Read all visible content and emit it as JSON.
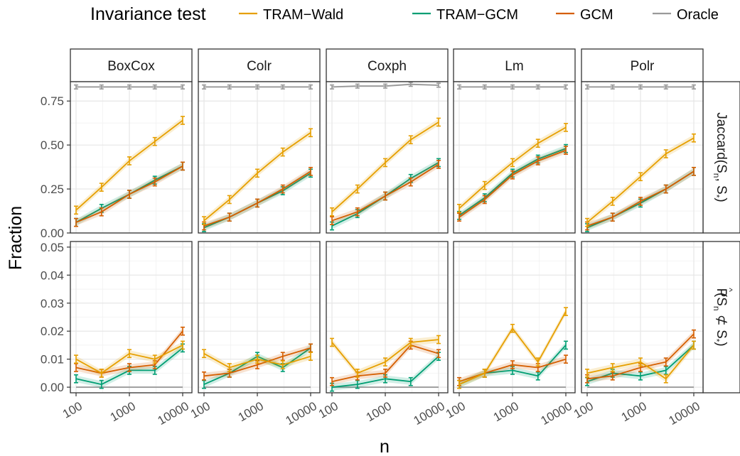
{
  "chart_data": {
    "type": "line",
    "legend": {
      "title": "Invariance test",
      "placement": "top",
      "entries": [
        "TRAM−Wald",
        "TRAM−GCM",
        "GCM",
        "Oracle"
      ]
    },
    "colors": {
      "TRAM−Wald": "#E69F00",
      "TRAM−GCM": "#009E73",
      "GCM": "#D55E00",
      "Oracle": "#999999"
    },
    "xlabel": "n",
    "ylabel": "Fraction",
    "x_scale": "log",
    "x": [
      100,
      300,
      1000,
      3000,
      10000
    ],
    "x_ticks": [
      100,
      1000,
      10000
    ],
    "x_tick_labels": [
      "100",
      "1000",
      "10000"
    ],
    "grid": true,
    "columns": [
      "BoxCox",
      "Colr",
      "Coxph",
      "Lm",
      "Polr"
    ],
    "rows": [
      {
        "label_main": "Jaccard(S",
        "label_sub1": "n",
        "label_mid": ", S",
        "label_sub2": "*",
        "label_end": ")",
        "ylim": [
          0,
          0.86
        ],
        "y_ticks": [
          0,
          0.25,
          0.5,
          0.75
        ],
        "y_tick_labels": [
          "0.00",
          "0.25",
          "0.50",
          "0.75"
        ]
      },
      {
        "label_main": "P",
        "label_hat": "^",
        "label_paren": "(S",
        "label_sub1": "n",
        "label_mid": " ⊄ S",
        "label_sub2": "*",
        "label_end": ")",
        "ylim": [
          -0.002,
          0.052
        ],
        "y_ticks": [
          0,
          0.01,
          0.02,
          0.03,
          0.04,
          0.05
        ],
        "y_tick_labels": [
          "0.00",
          "0.01",
          "0.02",
          "0.03",
          "0.04",
          "0.05"
        ]
      }
    ],
    "panels": [
      {
        "row": 0,
        "col": 0,
        "series": {
          "TRAM−Wald": [
            0.13,
            0.26,
            0.41,
            0.52,
            0.64
          ],
          "TRAM−GCM": [
            0.06,
            0.14,
            0.22,
            0.3,
            0.38
          ],
          "GCM": [
            0.06,
            0.12,
            0.22,
            0.29,
            0.38
          ],
          "Oracle": [
            0.83,
            0.83,
            0.83,
            0.83,
            0.83
          ]
        }
      },
      {
        "row": 0,
        "col": 1,
        "series": {
          "TRAM−Wald": [
            0.07,
            0.19,
            0.34,
            0.46,
            0.57
          ],
          "TRAM−GCM": [
            0.03,
            0.09,
            0.17,
            0.24,
            0.34
          ],
          "GCM": [
            0.04,
            0.09,
            0.17,
            0.25,
            0.35
          ],
          "Oracle": [
            0.83,
            0.83,
            0.83,
            0.83,
            0.83
          ]
        }
      },
      {
        "row": 0,
        "col": 2,
        "series": {
          "TRAM−Wald": [
            0.12,
            0.25,
            0.4,
            0.53,
            0.63
          ],
          "TRAM−GCM": [
            0.04,
            0.11,
            0.21,
            0.31,
            0.4
          ],
          "GCM": [
            0.07,
            0.12,
            0.21,
            0.29,
            0.39
          ],
          "Oracle": [
            0.83,
            0.835,
            0.835,
            0.845,
            0.84
          ]
        }
      },
      {
        "row": 0,
        "col": 3,
        "series": {
          "TRAM−Wald": [
            0.14,
            0.27,
            0.4,
            0.51,
            0.6
          ],
          "TRAM−GCM": [
            0.1,
            0.2,
            0.34,
            0.42,
            0.48
          ],
          "GCM": [
            0.09,
            0.19,
            0.33,
            0.41,
            0.47
          ],
          "Oracle": [
            0.83,
            0.83,
            0.83,
            0.83,
            0.83
          ]
        }
      },
      {
        "row": 0,
        "col": 4,
        "series": {
          "TRAM−Wald": [
            0.06,
            0.18,
            0.32,
            0.45,
            0.54
          ],
          "TRAM−GCM": [
            0.03,
            0.09,
            0.17,
            0.25,
            0.35
          ],
          "GCM": [
            0.04,
            0.09,
            0.18,
            0.25,
            0.35
          ],
          "Oracle": [
            0.83,
            0.83,
            0.83,
            0.83,
            0.83
          ]
        }
      },
      {
        "row": 1,
        "col": 0,
        "series": {
          "TRAM−Wald": [
            0.01,
            0.005,
            0.012,
            0.01,
            0.015
          ],
          "TRAM−GCM": [
            0.003,
            0.001,
            0.006,
            0.006,
            0.014
          ],
          "GCM": [
            0.007,
            0.005,
            0.007,
            0.008,
            0.02
          ],
          "Oracle": [
            0,
            0,
            0,
            0,
            0
          ]
        }
      },
      {
        "row": 1,
        "col": 1,
        "series": {
          "TRAM−Wald": [
            0.012,
            0.007,
            0.01,
            0.008,
            0.011
          ],
          "TRAM−GCM": [
            0.001,
            0.005,
            0.011,
            0.007,
            0.014
          ],
          "GCM": [
            0.004,
            0.005,
            0.008,
            0.011,
            0.014
          ],
          "Oracle": [
            0,
            0,
            0,
            0,
            0
          ]
        }
      },
      {
        "row": 1,
        "col": 2,
        "series": {
          "TRAM−Wald": [
            0.016,
            0.005,
            0.009,
            0.016,
            0.017
          ],
          "TRAM−GCM": [
            0.0,
            0.001,
            0.003,
            0.002,
            0.011
          ],
          "GCM": [
            0.002,
            0.004,
            0.005,
            0.015,
            0.012
          ],
          "Oracle": [
            0,
            0,
            0,
            0,
            0
          ]
        }
      },
      {
        "row": 1,
        "col": 3,
        "series": {
          "TRAM−Wald": [
            0.001,
            0.005,
            0.021,
            0.009,
            0.027
          ],
          "TRAM−GCM": [
            0.001,
            0.005,
            0.006,
            0.004,
            0.015
          ],
          "GCM": [
            0.002,
            0.005,
            0.008,
            0.007,
            0.01
          ],
          "Oracle": [
            0,
            0,
            0,
            0,
            0
          ]
        }
      },
      {
        "row": 1,
        "col": 4,
        "series": {
          "TRAM−Wald": [
            0.005,
            0.007,
            0.009,
            0.003,
            0.015
          ],
          "TRAM−GCM": [
            0.002,
            0.005,
            0.004,
            0.006,
            0.015
          ],
          "GCM": [
            0.003,
            0.004,
            0.007,
            0.009,
            0.019
          ],
          "Oracle": [
            0,
            0,
            0,
            0,
            0
          ]
        }
      }
    ]
  }
}
